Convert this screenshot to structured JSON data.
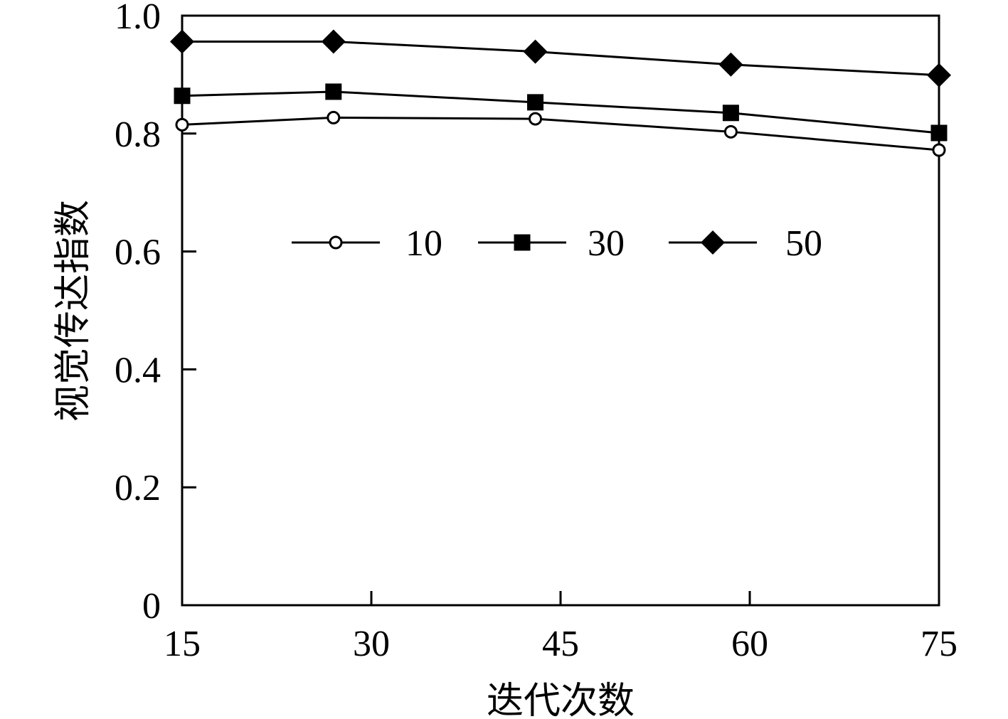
{
  "chart_data": {
    "type": "line",
    "title": "",
    "xlabel": "迭代次数",
    "ylabel": "视觉传达指数",
    "xlim": [
      15,
      75
    ],
    "ylim": [
      0,
      1.0
    ],
    "x_ticks": [
      "15",
      "30",
      "45",
      "60",
      "75"
    ],
    "y_ticks": [
      "0",
      "0.2",
      "0.4",
      "0.6",
      "0.8",
      "1.0"
    ],
    "grid": false,
    "legend_position": "center-top",
    "series": [
      {
        "name": "10",
        "marker": "open-circle",
        "x": [
          15,
          27,
          43,
          58.5,
          75
        ],
        "y": [
          0.815,
          0.827,
          0.825,
          0.803,
          0.772
        ]
      },
      {
        "name": "30",
        "marker": "filled-square",
        "x": [
          15,
          27,
          43,
          58.5,
          75
        ],
        "y": [
          0.864,
          0.871,
          0.853,
          0.835,
          0.801
        ]
      },
      {
        "name": "50",
        "marker": "filled-diamond",
        "x": [
          15,
          27,
          43,
          58.5,
          75
        ],
        "y": [
          0.956,
          0.956,
          0.939,
          0.917,
          0.899
        ]
      }
    ]
  }
}
